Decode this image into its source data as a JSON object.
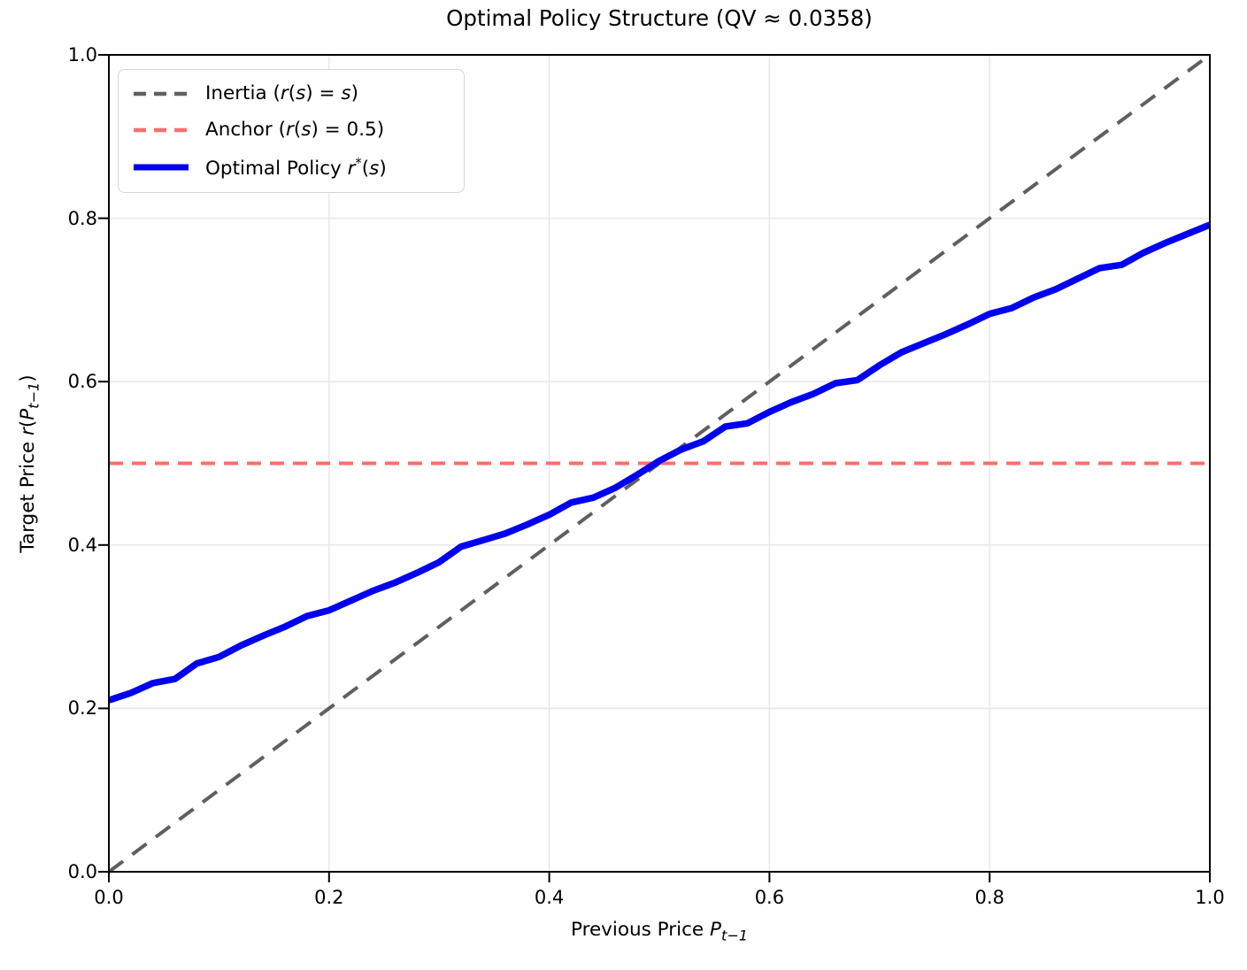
{
  "title": "Optimal Policy Structure (QV ≈ 0.0358)",
  "colors": {
    "inertia": "#5f5f5f",
    "anchor": "#ff6e6e",
    "optimal": "#0000f0",
    "gridline": "#e8e8e8",
    "spine": "#000000",
    "legend_border": "#d5d5d5",
    "background": "#ffffff"
  },
  "legend": {
    "position": "upper left",
    "entries": [
      {
        "label": "Inertia (r(s) = s)",
        "style": "dashed",
        "color": "#5f5f5f",
        "weight": 4.5,
        "parts": [
          {
            "t": "Inertia (",
            "s": "n"
          },
          {
            "t": "r",
            "s": "i"
          },
          {
            "t": "(",
            "s": "n"
          },
          {
            "t": "s",
            "s": "i"
          },
          {
            "t": ") = ",
            "s": "n"
          },
          {
            "t": "s",
            "s": "i"
          },
          {
            "t": ")",
            "s": "n"
          }
        ]
      },
      {
        "label": "Anchor (r(s) = 0.5)",
        "style": "dashed",
        "color": "#ff6e6e",
        "weight": 4.5,
        "parts": [
          {
            "t": "Anchor (",
            "s": "n"
          },
          {
            "t": "r",
            "s": "i"
          },
          {
            "t": "(",
            "s": "n"
          },
          {
            "t": "s",
            "s": "i"
          },
          {
            "t": ") = 0.5)",
            "s": "n"
          }
        ]
      },
      {
        "label": "Optimal Policy r*(s)",
        "style": "solid",
        "color": "#0000f0",
        "weight": 7,
        "parts": [
          {
            "t": "Optimal Policy ",
            "s": "n"
          },
          {
            "t": "r",
            "s": "i"
          },
          {
            "t": "*",
            "s": "sup"
          },
          {
            "t": "(",
            "s": "n"
          },
          {
            "t": "s",
            "s": "i"
          },
          {
            "t": ")",
            "s": "n"
          }
        ]
      }
    ]
  },
  "axes": {
    "x_label": "Previous Price P_t−1",
    "y_label": "Target Price r(P_t−1)",
    "x_label_parts": [
      {
        "t": "Previous Price ",
        "s": "n"
      },
      {
        "t": "P",
        "s": "i"
      },
      {
        "t": "t−1",
        "s": "sub"
      }
    ],
    "y_label_parts": [
      {
        "t": "Target Price ",
        "s": "n"
      },
      {
        "t": "r",
        "s": "i"
      },
      {
        "t": "(",
        "s": "n"
      },
      {
        "t": "P",
        "s": "i"
      },
      {
        "t": "t−1",
        "s": "sub"
      },
      {
        "t": ")",
        "s": "n"
      }
    ],
    "x_tick_labels": [
      "0.0",
      "0.2",
      "0.4",
      "0.6",
      "0.8",
      "1.0"
    ],
    "y_tick_labels": [
      "0.0",
      "0.2",
      "0.4",
      "0.6",
      "0.8",
      "1.0"
    ],
    "x_tick_values": [
      0,
      0.2,
      0.4,
      0.6,
      0.8,
      1.0
    ],
    "y_tick_values": [
      0,
      0.2,
      0.4,
      0.6,
      0.8,
      1.0
    ]
  },
  "chart_data": {
    "type": "line",
    "title": "Optimal Policy Structure (QV ≈ 0.0358)",
    "xlabel": "Previous Price P_t−1",
    "ylabel": "Target Price r(P_t−1)",
    "xlim": [
      0,
      1
    ],
    "ylim": [
      0,
      1
    ],
    "grid": true,
    "legend_position": "upper left",
    "series": [
      {
        "name": "Inertia (r(s) = s)",
        "style": "dashed",
        "color": "#5f5f5f",
        "width": 4,
        "dash": "20 13",
        "x": [
          0,
          1
        ],
        "y": [
          0,
          1
        ]
      },
      {
        "name": "Anchor (r(s) = 0.5)",
        "style": "dashed",
        "color": "#ff6e6e",
        "width": 4,
        "dash": "16 10",
        "x": [
          0,
          1
        ],
        "y": [
          0.5,
          0.5
        ]
      },
      {
        "name": "Optimal Policy r*(s)",
        "style": "solid",
        "color": "#0000f0",
        "width": 7.5,
        "dash": null,
        "x": [
          0.0,
          0.02,
          0.04,
          0.06,
          0.08,
          0.1,
          0.12,
          0.14,
          0.16,
          0.18,
          0.2,
          0.22,
          0.24,
          0.26,
          0.28,
          0.3,
          0.32,
          0.34,
          0.36,
          0.38,
          0.4,
          0.42,
          0.44,
          0.46,
          0.48,
          0.5,
          0.52,
          0.54,
          0.56,
          0.58,
          0.6,
          0.62,
          0.64,
          0.66,
          0.68,
          0.7,
          0.72,
          0.74,
          0.76,
          0.78,
          0.8,
          0.82,
          0.84,
          0.86,
          0.88,
          0.9,
          0.92,
          0.94,
          0.96,
          0.98,
          1.0
        ],
        "y": [
          0.21,
          0.219,
          0.231,
          0.236,
          0.255,
          0.263,
          0.277,
          0.289,
          0.3,
          0.313,
          0.32,
          0.332,
          0.344,
          0.354,
          0.366,
          0.379,
          0.398,
          0.406,
          0.414,
          0.425,
          0.437,
          0.452,
          0.458,
          0.47,
          0.486,
          0.503,
          0.517,
          0.527,
          0.545,
          0.549,
          0.563,
          0.575,
          0.585,
          0.598,
          0.602,
          0.62,
          0.636,
          0.647,
          0.658,
          0.67,
          0.683,
          0.69,
          0.703,
          0.713,
          0.726,
          0.739,
          0.743,
          0.758,
          0.77,
          0.781,
          0.792
        ]
      }
    ]
  }
}
